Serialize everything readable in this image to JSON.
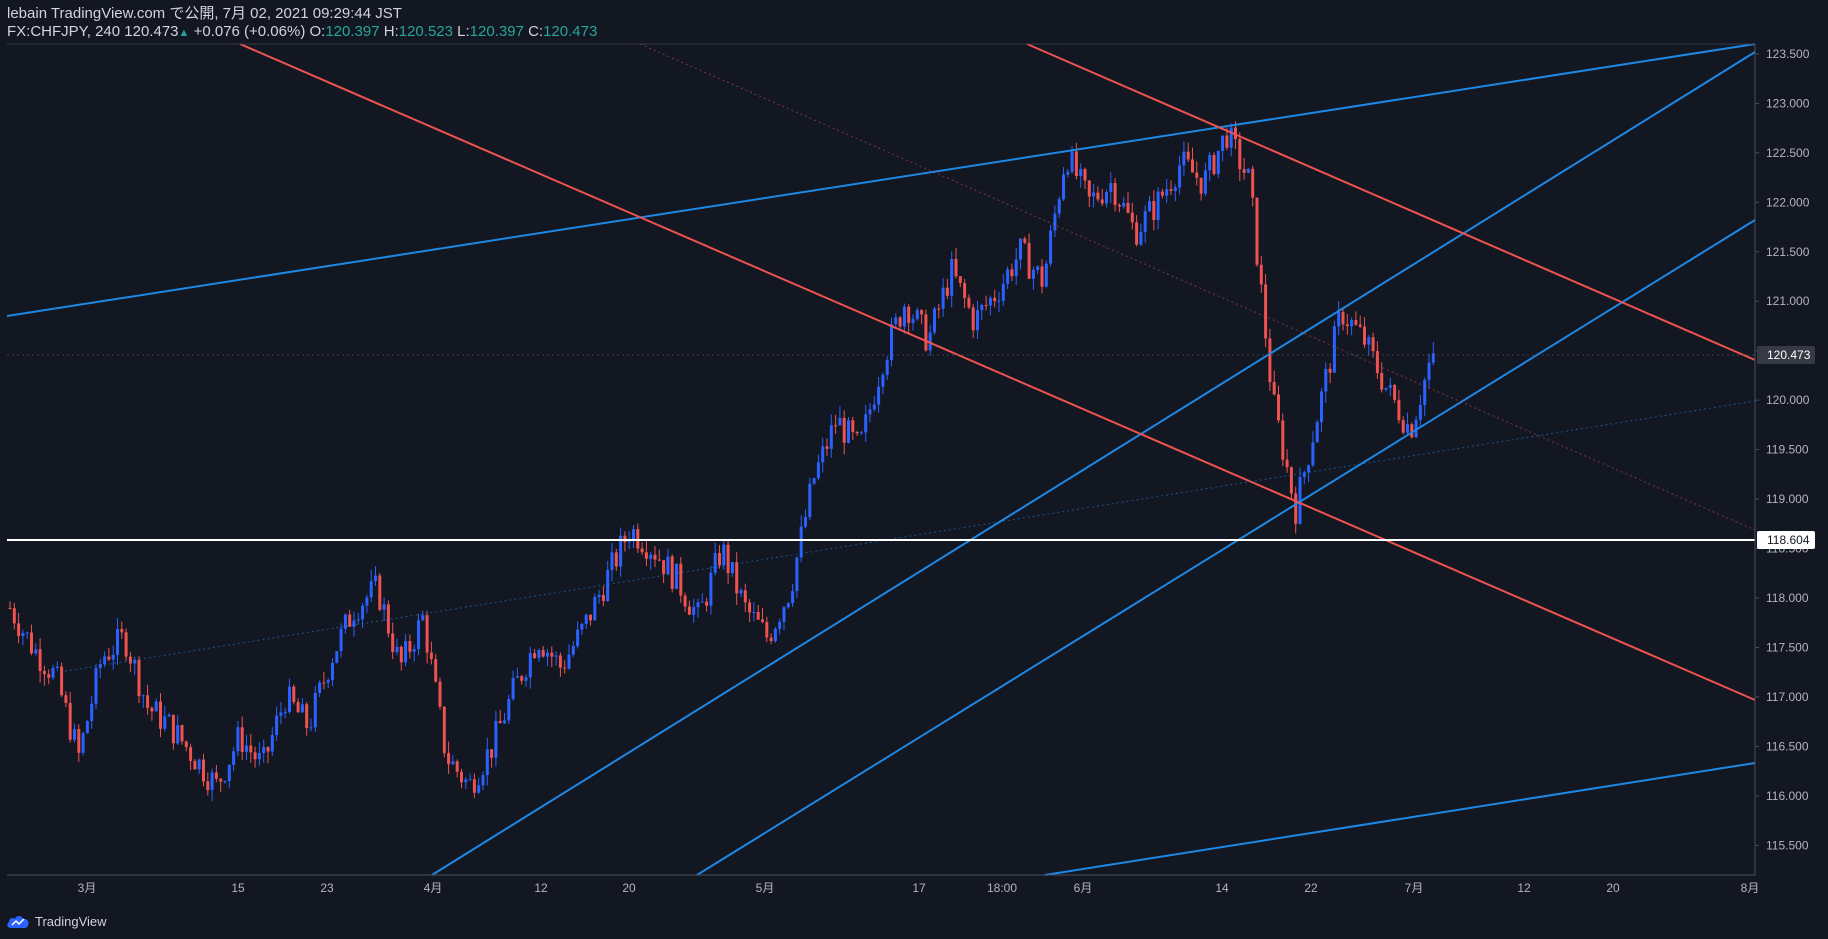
{
  "header": {
    "publish_line": "lebain TradingView.com で公開, 7月 02, 2021 09:29:44 JST",
    "symbol": "FX:CHFJPY, 240",
    "last": "120.473",
    "change": "+0.076 (+0.06%)",
    "o_label": "O:",
    "o_value": "120.397",
    "h_label": "H:",
    "h_value": "120.523",
    "l_label": "L:",
    "l_value": "120.397",
    "c_label": "C:",
    "c_value": "120.473"
  },
  "footer": {
    "brand": "TradingView"
  },
  "colors": {
    "background": "#131722",
    "up": "#2962ff",
    "down": "#ef5350",
    "trend_blue": "#1e88e5",
    "trend_red": "#ef5350",
    "hline": "#ffffff",
    "axis_text": "#b2b5be"
  },
  "chart_data": {
    "type": "candlestick",
    "symbol": "FX:CHFJPY",
    "interval": "240",
    "ylim": [
      115.2,
      123.6
    ],
    "y_ticks": [
      "115.500",
      "116.000",
      "116.500",
      "117.000",
      "117.500",
      "118.000",
      "118.500",
      "119.000",
      "119.500",
      "120.000",
      "120.500",
      "121.000",
      "121.500",
      "122.000",
      "122.500",
      "123.000",
      "123.500"
    ],
    "x_ticks": [
      "3月",
      "15",
      "23",
      "4月",
      "12",
      "20",
      "5月",
      "17",
      "18:00",
      "6月",
      "14",
      "22",
      "7月",
      "12",
      "20",
      "8月"
    ],
    "last_price_label": "120.473",
    "horizontal_line_label": "118.604",
    "horizontal_line_value": 118.604,
    "price_path": [
      {
        "t": 0,
        "p": 117.9
      },
      {
        "t": 2,
        "p": 117.5
      },
      {
        "t": 4,
        "p": 117.2
      },
      {
        "t": 6,
        "p": 116.4
      },
      {
        "t": 8,
        "p": 117.4
      },
      {
        "t": 10,
        "p": 117.6
      },
      {
        "t": 12,
        "p": 116.9
      },
      {
        "t": 14,
        "p": 116.7
      },
      {
        "t": 16,
        "p": 116.4
      },
      {
        "t": 18,
        "p": 116.1
      },
      {
        "t": 20,
        "p": 116.6
      },
      {
        "t": 22,
        "p": 116.3
      },
      {
        "t": 24,
        "p": 117.0
      },
      {
        "t": 26,
        "p": 116.7
      },
      {
        "t": 28,
        "p": 117.4
      },
      {
        "t": 30,
        "p": 117.9
      },
      {
        "t": 32,
        "p": 118.1
      },
      {
        "t": 34,
        "p": 117.3
      },
      {
        "t": 36,
        "p": 117.8
      },
      {
        "t": 38,
        "p": 116.4
      },
      {
        "t": 40,
        "p": 116.1
      },
      {
        "t": 42,
        "p": 116.5
      },
      {
        "t": 44,
        "p": 117.1
      },
      {
        "t": 46,
        "p": 117.6
      },
      {
        "t": 48,
        "p": 117.3
      },
      {
        "t": 50,
        "p": 117.7
      },
      {
        "t": 52,
        "p": 118.2
      },
      {
        "t": 54,
        "p": 118.7
      },
      {
        "t": 56,
        "p": 118.5
      },
      {
        "t": 58,
        "p": 118.2
      },
      {
        "t": 60,
        "p": 117.8
      },
      {
        "t": 62,
        "p": 118.5
      },
      {
        "t": 64,
        "p": 117.9
      },
      {
        "t": 66,
        "p": 117.6
      },
      {
        "t": 68,
        "p": 118.1
      },
      {
        "t": 70,
        "p": 119.2
      },
      {
        "t": 72,
        "p": 119.8
      },
      {
        "t": 74,
        "p": 119.5
      },
      {
        "t": 76,
        "p": 120.4
      },
      {
        "t": 78,
        "p": 121.0
      },
      {
        "t": 80,
        "p": 120.6
      },
      {
        "t": 82,
        "p": 121.3
      },
      {
        "t": 84,
        "p": 120.8
      },
      {
        "t": 86,
        "p": 121.1
      },
      {
        "t": 88,
        "p": 121.5
      },
      {
        "t": 90,
        "p": 121.2
      },
      {
        "t": 92,
        "p": 122.5
      },
      {
        "t": 94,
        "p": 122.0
      },
      {
        "t": 96,
        "p": 122.2
      },
      {
        "t": 98,
        "p": 121.7
      },
      {
        "t": 100,
        "p": 122.0
      },
      {
        "t": 102,
        "p": 122.4
      },
      {
        "t": 104,
        "p": 122.2
      },
      {
        "t": 106,
        "p": 122.7
      },
      {
        "t": 108,
        "p": 122.2
      },
      {
        "t": 110,
        "p": 120.0
      },
      {
        "t": 112,
        "p": 118.9
      },
      {
        "t": 114,
        "p": 119.9
      },
      {
        "t": 116,
        "p": 120.9
      },
      {
        "t": 118,
        "p": 120.6
      },
      {
        "t": 120,
        "p": 120.1
      },
      {
        "t": 122,
        "p": 119.7
      },
      {
        "t": 124,
        "p": 120.5
      }
    ]
  }
}
